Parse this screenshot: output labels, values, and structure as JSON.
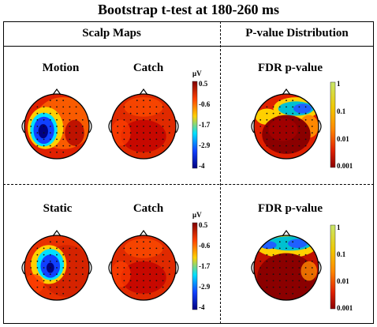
{
  "title": "Bootstrap t-test at 180-260 ms",
  "columns": {
    "scalp": "Scalp Maps",
    "pvalue": "P-value Distribution"
  },
  "rows": [
    {
      "map1": "Motion",
      "map2": "Catch",
      "pmap": "FDR p-value"
    },
    {
      "map1": "Static",
      "map2": "Catch",
      "pmap": "FDR p-value"
    }
  ],
  "amp_colorbar": {
    "unit": "μV",
    "ticks": [
      "0.5",
      "-0.6",
      "-1.7",
      "-2.9",
      "-4"
    ],
    "colors": [
      "#7f0000",
      "#ff4000",
      "#ffd000",
      "#00e0ff",
      "#1040ff",
      "#000080"
    ]
  },
  "p_colorbar": {
    "ticks": [
      "1",
      "0.1",
      "0.01",
      "0.001"
    ],
    "colors": [
      "#c8e86a",
      "#f0c800",
      "#ff8800",
      "#e02000",
      "#8b0000"
    ]
  }
}
